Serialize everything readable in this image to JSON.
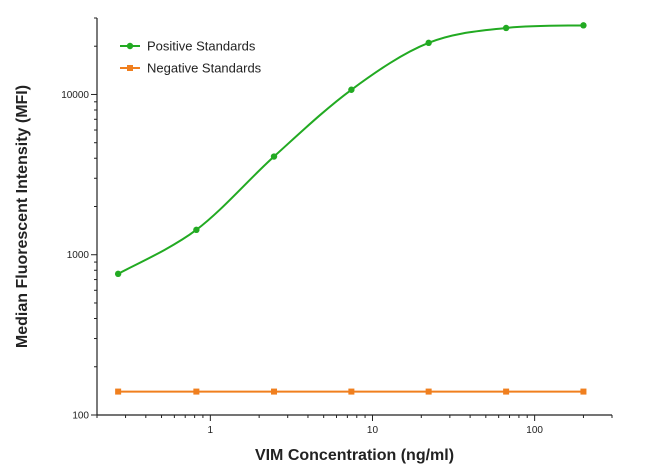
{
  "chart_data": {
    "type": "line",
    "title": "",
    "xlabel": "VIM Concentration (ng/ml)",
    "ylabel": "Median Fluorescent Intensity (MFI)",
    "x_scale": "log",
    "y_scale": "log",
    "xlim": [
      0.2,
      300
    ],
    "ylim": [
      100,
      30000
    ],
    "x_ticks": [
      1,
      10,
      100
    ],
    "x_tick_labels": [
      "1",
      "10",
      "100"
    ],
    "y_ticks": [
      100,
      1000,
      10000
    ],
    "y_tick_labels": [
      "100",
      "1000",
      "10000"
    ],
    "grid": false,
    "legend_position": "top-left",
    "series": [
      {
        "name": "Positive Standards",
        "color": "#22aa22",
        "marker": "circle",
        "curve": "fitted",
        "x": [
          0.27,
          0.82,
          2.47,
          7.41,
          22.2,
          66.7,
          200
        ],
        "y": [
          760,
          1430,
          4100,
          10700,
          21000,
          26000,
          27000
        ]
      },
      {
        "name": "Negative Standards",
        "color": "#f07f1e",
        "marker": "square",
        "curve": "straight",
        "x": [
          0.27,
          0.82,
          2.47,
          7.41,
          22.2,
          66.7,
          200
        ],
        "y": [
          140,
          140,
          140,
          140,
          140,
          140,
          140
        ]
      }
    ]
  }
}
